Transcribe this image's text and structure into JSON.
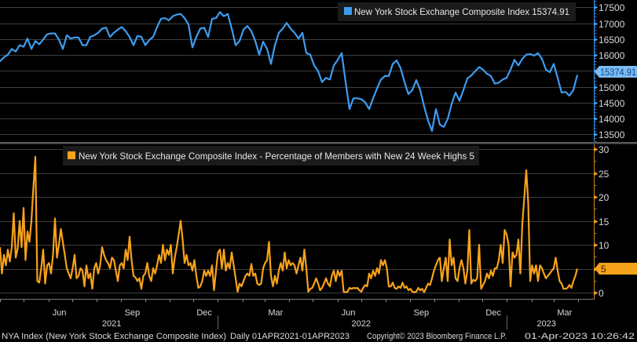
{
  "chart_data": [
    {
      "type": "line",
      "legend": "New York Stock Exchange Composite Index 15374.91",
      "series": [
        {
          "name": "New York Stock Exchange Composite Index",
          "color": "#3d9cf0",
          "last_value_label": "15374.91",
          "values": [
            15800,
            15930,
            16010,
            16190,
            16110,
            16310,
            16260,
            16520,
            16190,
            16440,
            16340,
            16490,
            16650,
            16680,
            16680,
            16490,
            16190,
            16620,
            16520,
            16550,
            16550,
            16310,
            16310,
            16570,
            16620,
            16700,
            16830,
            16860,
            16570,
            16700,
            16800,
            16880,
            16750,
            16570,
            16310,
            16600,
            16570,
            16310,
            16470,
            16570,
            16880,
            17140,
            17160,
            17090,
            17220,
            17270,
            17290,
            17160,
            16960,
            16240,
            16570,
            16830,
            16860,
            16570,
            17140,
            17160,
            17350,
            17220,
            17290,
            16830,
            16310,
            16440,
            16800,
            16910,
            16750,
            16440,
            16010,
            16420,
            16190,
            15720,
            16310,
            16700,
            16830,
            17010,
            16830,
            16700,
            16520,
            16700,
            16060,
            16010,
            15670,
            15490,
            15150,
            15280,
            15230,
            15670,
            15850,
            16060,
            15150,
            14300,
            14640,
            14640,
            14610,
            14510,
            14300,
            14640,
            14950,
            15230,
            15340,
            15340,
            15720,
            15830,
            15590,
            15150,
            14770,
            14900,
            15210,
            14900,
            14380,
            13940,
            13610,
            14300,
            13810,
            13740,
            13990,
            14460,
            14820,
            14560,
            14900,
            15260,
            15360,
            15490,
            15620,
            15540,
            15410,
            15340,
            15100,
            15130,
            15230,
            15280,
            15540,
            15850,
            15670,
            15880,
            16010,
            16030,
            15980,
            16060,
            15880,
            15540,
            15460,
            15720,
            15280,
            14820,
            14840,
            14720,
            14900,
            15374.91
          ]
        }
      ],
      "y_ticks": [
        17500,
        17000,
        16500,
        16000,
        15500,
        15000,
        14500,
        14000,
        13500
      ],
      "y_tick_labels": [
        "17500",
        "17000",
        "16500",
        "16000",
        "",
        "15000",
        "14500",
        "14000",
        "13500"
      ],
      "ylim": [
        13290,
        17730
      ],
      "grid": true,
      "legend_placement": "top-right"
    },
    {
      "type": "line",
      "legend": "New York Stock Exchange Composite Index - Percentage of Members with New 24 Week Highs 5",
      "series": [
        {
          "name": "New York Stock Exchange Composite Index - Percentage of Members with New 24 Week Highs",
          "color": "#f7a21b",
          "last_value_label": "5",
          "values": [
            9.5,
            4,
            7.9,
            5.7,
            9,
            6.5,
            9.5,
            16.6,
            7.3,
            9.2,
            15,
            9.5,
            17.7,
            6.8,
            12.8,
            10.6,
            15,
            22,
            28.4,
            2.4,
            2.1,
            5.1,
            9,
            1.9,
            5.7,
            6.2,
            4,
            7.9,
            15.5,
            7.3,
            10,
            13.3,
            10.6,
            7.9,
            5.1,
            4,
            3,
            5.1,
            7.9,
            3,
            3.5,
            5.1,
            4.6,
            1.3,
            5.7,
            3,
            4,
            0.8,
            5.1,
            6.2,
            4,
            5.7,
            9.5,
            7.9,
            6.8,
            6.2,
            5.1,
            7.3,
            6.8,
            4.6,
            2.4,
            5.7,
            6.2,
            5.1,
            9,
            6.8,
            11.7,
            6.8,
            3.5,
            3.2,
            2.4,
            3,
            0.8,
            3.5,
            4,
            6.2,
            3.5,
            2.4,
            5.1,
            4,
            5.7,
            7.9,
            6.2,
            10,
            6.8,
            9,
            7.9,
            10,
            4,
            7.3,
            9.5,
            12.2,
            15,
            11.1,
            6.2,
            7.9,
            5.7,
            6.2,
            4.6,
            6.8,
            3.5,
            1,
            1.3,
            2.4,
            4.6,
            3.5,
            4.6,
            3.5,
            5.7,
            0.5,
            4.6,
            8.4,
            9,
            5.1,
            9,
            4.6,
            6.2,
            5.1,
            8.4,
            5.7,
            3,
            0.2,
            1.9,
            1.3,
            2.4,
            3.5,
            4,
            3.5,
            6,
            3.5,
            4,
            1.9,
            1.6,
            1.9,
            5.1,
            6.2,
            6.8,
            10.6,
            3.5,
            1.3,
            3.5,
            1.9,
            4.6,
            6.2,
            4.6,
            8.4,
            5.1,
            6.8,
            5.7,
            6.2,
            5.7,
            4,
            5.7,
            7.3,
            4.6,
            9,
            5.1,
            0.2,
            0.8,
            1,
            1.9,
            3,
            1.9,
            0.5,
            1,
            1.9,
            3,
            1.9,
            1.3,
            3.5,
            4.6,
            2.4,
            4.6,
            3.5,
            4.6,
            0.2,
            0.1,
            0.2,
            1,
            0.8,
            1,
            0.9,
            1,
            0.5,
            0.2,
            1,
            1.6,
            1.3,
            4,
            3,
            4.6,
            3.5,
            5.1,
            4,
            6.8,
            5.7,
            6.8,
            5.1,
            1.3,
            1.3,
            2.1,
            1,
            0.8,
            1.3,
            1,
            2.1,
            1,
            1.3,
            0.5,
            0.8,
            0.2,
            0.1,
            0.2,
            1,
            0.5,
            0.8,
            0.1,
            1,
            1.9,
            1.6,
            3,
            4.6,
            5.7,
            6.8,
            7.3,
            2.4,
            5.1,
            7.3,
            2.4,
            11.1,
            5.7,
            7.3,
            3,
            2.4,
            5.1,
            6.8,
            5.1,
            1.9,
            4.6,
            13.1,
            1.9,
            2.7,
            2.4,
            3,
            10,
            0.8,
            1.6,
            2.4,
            4,
            3,
            4.6,
            3.5,
            5.1,
            5.1,
            6.8,
            10,
            6.2,
            13.1,
            12.2,
            10,
            1.3,
            8.4,
            7.3,
            7.9,
            11.1,
            4,
            14.4,
            19.9,
            25.6,
            18.8,
            2.4,
            5.7,
            4,
            5.7,
            2.4,
            5.7,
            5.1,
            4,
            3,
            3.5,
            4,
            4.6,
            5.1,
            7.3,
            4.6,
            2.4,
            1.9,
            0.8,
            0.8,
            1,
            1.6,
            1,
            2.4,
            3.5,
            5
          ]
        }
      ],
      "y_ticks": [
        30,
        25,
        20,
        15,
        10,
        5,
        0
      ],
      "y_tick_labels": [
        "30",
        "25",
        "20",
        "15",
        "10",
        "",
        "0"
      ],
      "ylim": [
        -1.3,
        31
      ],
      "grid": true,
      "legend_placement": "top"
    }
  ],
  "x_axis": {
    "range": [
      "2021-04-01",
      "2023-03-31"
    ],
    "months": [
      {
        "label": "Jun",
        "date": "2021-06-15"
      },
      {
        "label": "Sep",
        "date": "2021-09-15"
      },
      {
        "label": "Dec",
        "date": "2021-12-15"
      },
      {
        "label": "Mar",
        "date": "2022-03-15"
      },
      {
        "label": "Jun",
        "date": "2022-06-15"
      },
      {
        "label": "Sep",
        "date": "2022-09-15"
      },
      {
        "label": "Dec",
        "date": "2022-12-15"
      },
      {
        "label": "Mar",
        "date": "2023-03-15"
      }
    ],
    "years": [
      {
        "label": "2021",
        "date": "2021-08-20"
      },
      {
        "label": "2022",
        "date": "2022-07-01"
      },
      {
        "label": "2023",
        "date": "2023-02-20"
      }
    ]
  },
  "footer": {
    "security": "NYA Index (New York Stock Exchange Composite Index)",
    "period": "Daily 01APR2021-01APR2023",
    "copyright": "Copyright© 2023 Bloomberg Finance L.P.",
    "timestamp": "01-Apr-2023 10:26:42"
  }
}
